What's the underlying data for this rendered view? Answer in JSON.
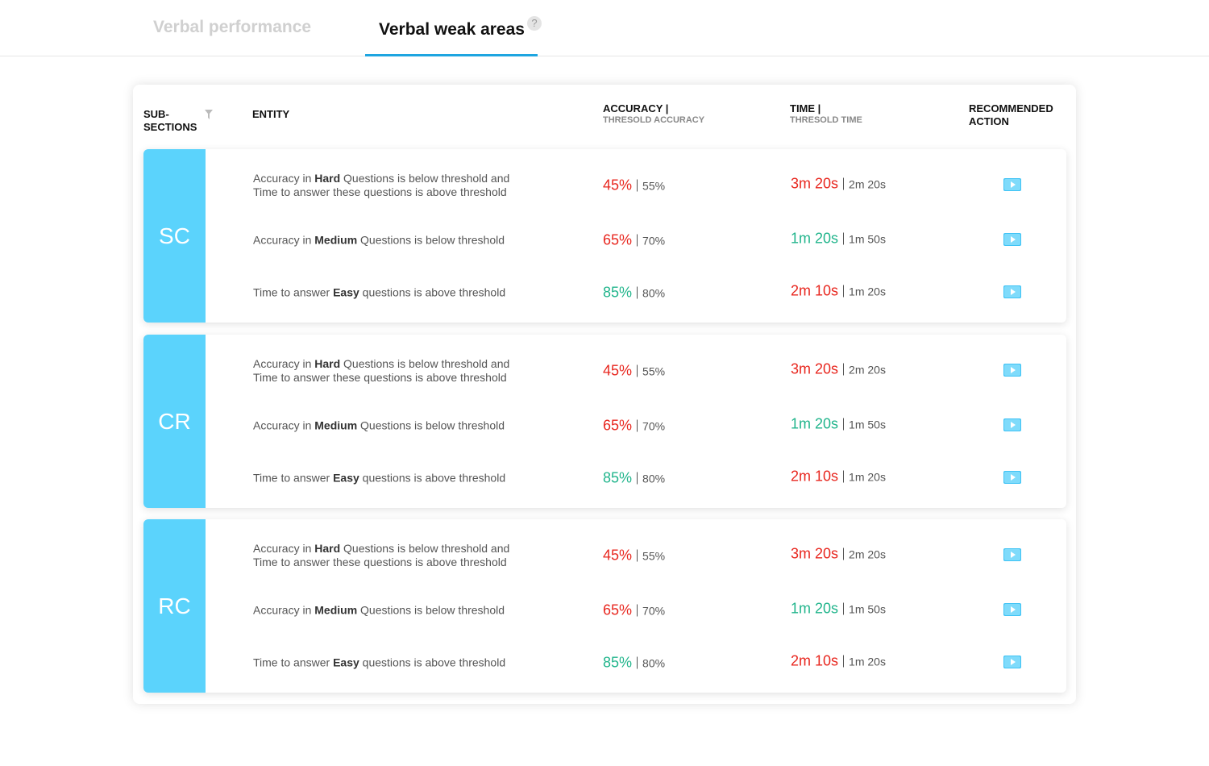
{
  "tabs": [
    {
      "label": "Verbal performance",
      "active": false
    },
    {
      "label": "Verbal weak areas",
      "active": true,
      "help": "?"
    }
  ],
  "table": {
    "headers": {
      "subsections": "SUB-SECTIONS",
      "entity": "ENTITY",
      "accuracy": "ACCURACY |",
      "accuracy_sub": "THRESOLD ACCURACY",
      "time": "TIME |",
      "time_sub": "THRESOLD TIME",
      "action": "RECOMMENDED ACTION"
    },
    "groups": [
      {
        "name": "SC",
        "rows": [
          {
            "entity": {
              "before": "Accuracy in ",
              "bold": "Hard",
              "after": " Questions is below threshold and Time to answer these questions is above threshold"
            },
            "accuracy": "45%",
            "accuracy_color": "#e8271f",
            "accuracy_threshold": "55%",
            "time": "3m 20s",
            "time_color": "#e8271f",
            "time_threshold": "2m 20s"
          },
          {
            "entity": {
              "before": "Accuracy in ",
              "bold": "Medium",
              "after": " Questions is below threshold"
            },
            "accuracy": "65%",
            "accuracy_color": "#e8271f",
            "accuracy_threshold": "70%",
            "time": "1m 20s",
            "time_color": "#22b58c",
            "time_threshold": "1m 50s"
          },
          {
            "entity": {
              "before": "Time to answer ",
              "bold": "Easy",
              "after": " questions is above threshold"
            },
            "accuracy": "85%",
            "accuracy_color": "#22b58c",
            "accuracy_threshold": "80%",
            "time": "2m 10s",
            "time_color": "#e8271f",
            "time_threshold": "1m 20s"
          }
        ]
      },
      {
        "name": "CR",
        "rows": [
          {
            "entity": {
              "before": "Accuracy in ",
              "bold": "Hard",
              "after": " Questions is below threshold and Time to answer these questions is above threshold"
            },
            "accuracy": "45%",
            "accuracy_color": "#e8271f",
            "accuracy_threshold": "55%",
            "time": "3m 20s",
            "time_color": "#e8271f",
            "time_threshold": "2m 20s"
          },
          {
            "entity": {
              "before": "Accuracy in ",
              "bold": "Medium",
              "after": " Questions is below threshold"
            },
            "accuracy": "65%",
            "accuracy_color": "#e8271f",
            "accuracy_threshold": "70%",
            "time": "1m 20s",
            "time_color": "#22b58c",
            "time_threshold": "1m 50s"
          },
          {
            "entity": {
              "before": "Time to answer ",
              "bold": "Easy",
              "after": " questions is above threshold"
            },
            "accuracy": "85%",
            "accuracy_color": "#22b58c",
            "accuracy_threshold": "80%",
            "time": "2m 10s",
            "time_color": "#e8271f",
            "time_threshold": "1m 20s"
          }
        ]
      },
      {
        "name": "RC",
        "rows": [
          {
            "entity": {
              "before": "Accuracy in ",
              "bold": "Hard",
              "after": " Questions is below threshold and Time to answer these questions is above threshold"
            },
            "accuracy": "45%",
            "accuracy_color": "#e8271f",
            "accuracy_threshold": "55%",
            "time": "3m 20s",
            "time_color": "#e8271f",
            "time_threshold": "2m 20s"
          },
          {
            "entity": {
              "before": "Accuracy in ",
              "bold": "Medium",
              "after": " Questions is below threshold"
            },
            "accuracy": "65%",
            "accuracy_color": "#e8271f",
            "accuracy_threshold": "70%",
            "time": "1m 20s",
            "time_color": "#22b58c",
            "time_threshold": "1m 50s"
          },
          {
            "entity": {
              "before": "Time to answer ",
              "bold": "Easy",
              "after": " questions is above threshold"
            },
            "accuracy": "85%",
            "accuracy_color": "#22b58c",
            "accuracy_threshold": "80%",
            "time": "2m 10s",
            "time_color": "#e8271f",
            "time_threshold": "1m 20s"
          }
        ]
      }
    ]
  }
}
